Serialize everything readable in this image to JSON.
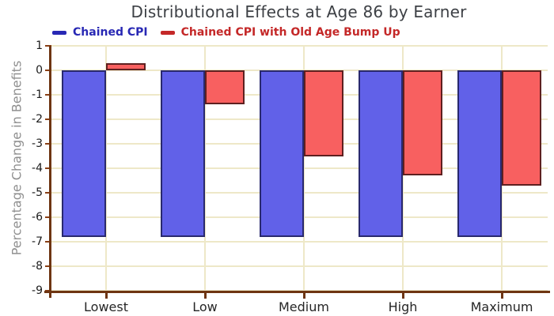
{
  "title": "Distributional Effects at Age 86 by Earner",
  "legend": {
    "items": [
      {
        "label": "Chained CPI",
        "color": "#2828b4"
      },
      {
        "label": "Chained CPI with Old Age Bump Up",
        "color": "#c42828"
      }
    ]
  },
  "chart_data": {
    "type": "bar",
    "title": "Distributional Effects at Age 86 by Earner",
    "xlabel": "",
    "ylabel": "Percentage Change in Benefits",
    "categories": [
      "Lowest",
      "Low",
      "Medium",
      "High",
      "Maximum"
    ],
    "series": [
      {
        "name": "Chained CPI",
        "values": [
          -6.8,
          -6.8,
          -6.8,
          -6.8,
          -6.8
        ],
        "fill": "#6161e8",
        "stroke": "#29296e"
      },
      {
        "name": "Chained CPI with Old Age Bump Up",
        "values": [
          0.3,
          -1.4,
          -3.5,
          -4.3,
          -4.7
        ],
        "fill": "#f86060",
        "stroke": "#5e2020"
      }
    ],
    "ylim": [
      -9,
      1
    ],
    "yticks": [
      1,
      0,
      -1,
      -2,
      -3,
      -4,
      -5,
      -6,
      -7,
      -8,
      -9
    ],
    "grid": true,
    "legend_position": "top-left",
    "colors": {
      "axis": "#6e3512",
      "tick": "#8a4016",
      "grid": "#eee8c8",
      "title_text": "#3d4045",
      "ylabel_text": "#8f8f8f"
    }
  }
}
